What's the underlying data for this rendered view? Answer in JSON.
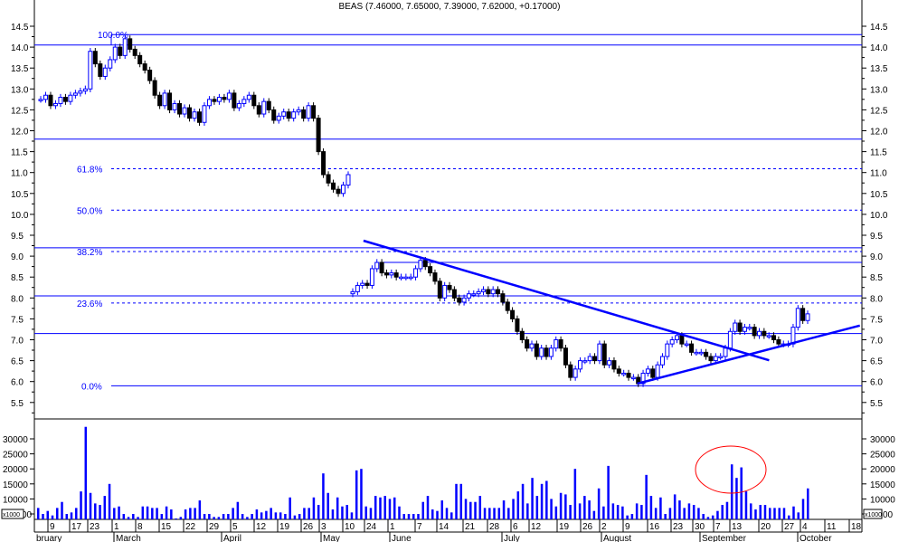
{
  "chart_data": {
    "type": "candlestick",
    "title": "BEAS (7.46000, 7.65000, 7.39000, 7.62000, +0.17000)",
    "price_axis": {
      "ticks": [
        14.5,
        14.0,
        13.5,
        13.0,
        12.5,
        12.0,
        11.5,
        11.0,
        10.5,
        10.0,
        9.5,
        9.0,
        8.5,
        8.0,
        7.5,
        7.0,
        6.5,
        6.0,
        5.5
      ],
      "ylim": [
        5.2,
        14.6
      ]
    },
    "volume_axis": {
      "ticks": [
        30000,
        25000,
        20000,
        15000,
        10000,
        5000
      ],
      "unit_label": "x1000"
    },
    "x_ticks": [
      {
        "label": "9",
        "month": 2,
        "day": 9
      },
      {
        "label": "17",
        "month": 2,
        "day": 17
      },
      {
        "label": "23",
        "month": 2,
        "day": 23
      },
      {
        "label": "1",
        "month": 3,
        "day": 1
      },
      {
        "label": "8",
        "month": 3,
        "day": 8
      },
      {
        "label": "15",
        "month": 3,
        "day": 15
      },
      {
        "label": "22",
        "month": 3,
        "day": 22
      },
      {
        "label": "29",
        "month": 3,
        "day": 29
      },
      {
        "label": "5",
        "month": 4,
        "day": 5
      },
      {
        "label": "12",
        "month": 4,
        "day": 12
      },
      {
        "label": "19",
        "month": 4,
        "day": 19
      },
      {
        "label": "26",
        "month": 4,
        "day": 26
      },
      {
        "label": "3",
        "month": 5,
        "day": 3
      },
      {
        "label": "10",
        "month": 5,
        "day": 10
      },
      {
        "label": "24",
        "month": 5,
        "day": 24
      },
      {
        "label": "1",
        "month": 6,
        "day": 1
      },
      {
        "label": "7",
        "month": 6,
        "day": 7
      },
      {
        "label": "14",
        "month": 6,
        "day": 14
      },
      {
        "label": "21",
        "month": 6,
        "day": 21
      },
      {
        "label": "28",
        "month": 6,
        "day": 28
      },
      {
        "label": "6",
        "month": 7,
        "day": 6
      },
      {
        "label": "12",
        "month": 7,
        "day": 12
      },
      {
        "label": "19",
        "month": 7,
        "day": 19
      },
      {
        "label": "26",
        "month": 7,
        "day": 26
      },
      {
        "label": "2",
        "month": 8,
        "day": 2
      },
      {
        "label": "9",
        "month": 8,
        "day": 9
      },
      {
        "label": "16",
        "month": 8,
        "day": 16
      },
      {
        "label": "23",
        "month": 8,
        "day": 23
      },
      {
        "label": "30",
        "month": 8,
        "day": 30
      },
      {
        "label": "7",
        "month": 9,
        "day": 7
      },
      {
        "label": "13",
        "month": 9,
        "day": 13
      },
      {
        "label": "20",
        "month": 9,
        "day": 20
      },
      {
        "label": "27",
        "month": 9,
        "day": 27
      },
      {
        "label": "4",
        "month": 10,
        "day": 4
      },
      {
        "label": "11",
        "month": 10,
        "day": 11
      },
      {
        "label": "18",
        "month": 10,
        "day": 18
      }
    ],
    "months": [
      "bruary",
      "March",
      "April",
      "May",
      "June",
      "July",
      "August",
      "September",
      "October"
    ],
    "closes_before_gap": [
      12.75,
      12.85,
      12.6,
      12.65,
      12.8,
      12.7,
      12.85,
      12.9,
      12.95,
      13.0,
      13.9,
      13.6,
      13.3,
      13.5,
      13.7,
      14.0,
      13.8,
      14.2,
      13.95,
      13.8,
      13.6,
      13.45,
      13.2,
      12.85,
      12.6,
      12.9,
      12.5,
      12.65,
      12.4,
      12.55,
      12.3,
      12.45,
      12.2,
      12.6,
      12.75,
      12.7,
      12.8,
      12.75,
      12.9,
      12.55,
      12.65,
      12.75,
      12.85,
      12.6,
      12.4,
      12.7,
      12.5,
      12.25,
      12.35,
      12.45,
      12.3,
      12.45,
      12.5,
      12.3,
      12.6,
      12.3,
      11.5,
      10.95,
      10.75,
      10.6,
      10.5,
      10.7,
      10.95
    ],
    "closes_after_gap": [
      8.15,
      8.3,
      8.35,
      8.3,
      8.7,
      8.85,
      8.6,
      8.55,
      8.6,
      8.5,
      8.5,
      8.5,
      8.5,
      8.7,
      8.9,
      8.75,
      8.6,
      8.4,
      8.0,
      8.3,
      8.2,
      8.0,
      7.9,
      8.0,
      8.1,
      8.1,
      8.15,
      8.2,
      8.1,
      8.2,
      8.1,
      7.9,
      7.7,
      7.5,
      7.2,
      7.0,
      6.8,
      6.9,
      6.6,
      6.8,
      6.6,
      6.8,
      7.0,
      6.8,
      6.4,
      6.1,
      6.3,
      6.5,
      6.5,
      6.6,
      6.5,
      6.9,
      6.4,
      6.5,
      6.3,
      6.2,
      6.2,
      6.1,
      6.1,
      5.95,
      6.2,
      6.3,
      6.1,
      6.4,
      6.6,
      6.9,
      7.0,
      7.1,
      6.9,
      6.9,
      6.7,
      6.7,
      6.7,
      6.6,
      6.5,
      6.6,
      6.6,
      6.8,
      7.2,
      7.4,
      7.2,
      7.3,
      7.3,
      7.1,
      7.2,
      7.1,
      7.1,
      7.0,
      6.9,
      6.9,
      6.9,
      7.3,
      7.75,
      7.46,
      7.62
    ],
    "volume_thousands": [
      7,
      5,
      6,
      4.5,
      7,
      9,
      5,
      5.5,
      7,
      12.5,
      34,
      12,
      8.5,
      8,
      11,
      15,
      7,
      7.5,
      5,
      4,
      5,
      4,
      7.5,
      7.5,
      7,
      7,
      5,
      7.5,
      6.5,
      3.5,
      4,
      6.5,
      7,
      7,
      9.5,
      5,
      5,
      4,
      4,
      5,
      5,
      7,
      9,
      5,
      4,
      5,
      6.5,
      5.5,
      6,
      7,
      5.5,
      5.5,
      5,
      10.5,
      4.5,
      5,
      7,
      7,
      10.5,
      8,
      18.5,
      12,
      6.5,
      10.5,
      7.5,
      8,
      5.5,
      19.5,
      20,
      7.5,
      7,
      11,
      10.5,
      11,
      10,
      10.5,
      7.5,
      5,
      5,
      5,
      5,
      9,
      11,
      6.5,
      6,
      9.5,
      7,
      5.5,
      15,
      15,
      10,
      9,
      9,
      11,
      7,
      7,
      7,
      7,
      9.5,
      7,
      10,
      12.5,
      15,
      8.5,
      17,
      11,
      15,
      16,
      10,
      7.5,
      12,
      11.5,
      8,
      20,
      8.5,
      11,
      9.5,
      6,
      13.5,
      7.5,
      21,
      8.5,
      8,
      7.5,
      4.5,
      5,
      8.5,
      8,
      18,
      11,
      7,
      10.5,
      5,
      7,
      11.5,
      9.5,
      7,
      8.5,
      8,
      7,
      5,
      4,
      4.5,
      6,
      8,
      9,
      21.5,
      17,
      20.5,
      12.5,
      8.5,
      6.5,
      8,
      8,
      7,
      7,
      7,
      7,
      4.5,
      7.5,
      5.5,
      10,
      13.5
    ],
    "horizontal_lines": [
      {
        "price": 14.3,
        "style": "solid",
        "label": "100.0%"
      },
      {
        "price": 14.05,
        "style": "solid",
        "label": ""
      },
      {
        "price": 11.8,
        "style": "solid",
        "label": ""
      },
      {
        "price": 11.09,
        "style": "dashed",
        "label": "61.8%"
      },
      {
        "price": 10.1,
        "style": "dashed",
        "label": "50.0%"
      },
      {
        "price": 9.2,
        "style": "solid",
        "label": ""
      },
      {
        "price": 9.11,
        "style": "dashed",
        "label": "38.2%"
      },
      {
        "price": 8.85,
        "style": "solid",
        "label": ""
      },
      {
        "price": 8.05,
        "style": "solid",
        "label": ""
      },
      {
        "price": 7.88,
        "style": "dashed",
        "label": "23.6%"
      },
      {
        "price": 7.15,
        "style": "solid",
        "label": ""
      },
      {
        "price": 5.9,
        "style": "solid",
        "label": "0.0%"
      }
    ],
    "trend_lines": [
      {
        "from": {
          "month": 5,
          "day": 21,
          "price": 9.37
        },
        "to": {
          "month": 9,
          "day": 22,
          "price": 6.51
        }
      },
      {
        "from": {
          "month": 8,
          "day": 12,
          "price": 5.95
        },
        "to": {
          "month": 10,
          "day": 20,
          "price": 7.34
        }
      }
    ],
    "annotation": {
      "shape": "ellipse",
      "color": "#ff0000"
    },
    "colors": {
      "up": "#0000ff",
      "down": "#000000",
      "lines": "#0000ff",
      "volume": "#0000ff"
    }
  }
}
